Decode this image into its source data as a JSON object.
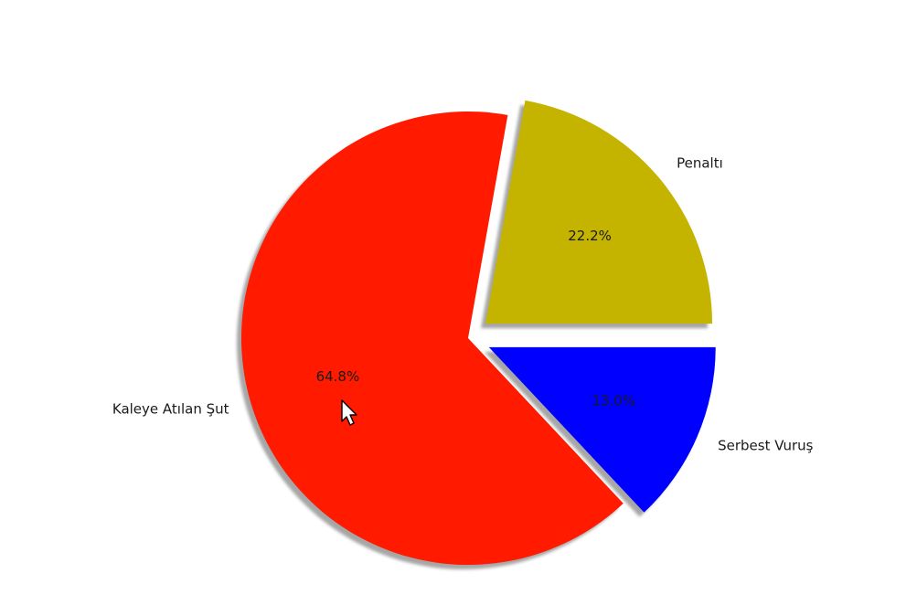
{
  "chart_data": {
    "type": "pie",
    "title": "",
    "legend": "none",
    "shadow": true,
    "start_angle_deg": 0,
    "direction": "counterclockwise",
    "slices": [
      {
        "label": "Penaltı",
        "value": 22.2,
        "pct_label": "22.2%",
        "color": "#c4b400",
        "exploded": true
      },
      {
        "label": "Kaleye Atılan Şut",
        "value": 64.8,
        "pct_label": "64.8%",
        "color": "#ff1a00",
        "exploded": false
      },
      {
        "label": "Serbest Vuruş",
        "value": 13.0,
        "pct_label": "13.0%",
        "color": "#0000ff",
        "exploded": true
      }
    ]
  }
}
